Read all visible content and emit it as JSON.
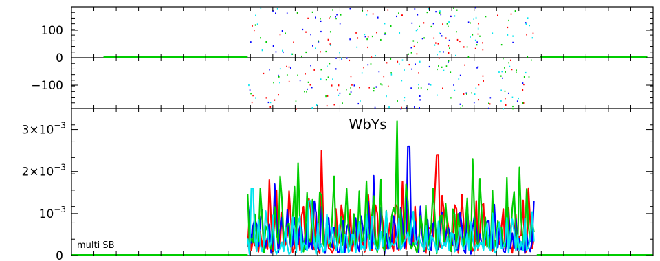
{
  "chart_data": [
    {
      "type": "scatter",
      "panel": "phase-upper",
      "ylim": [
        0,
        185
      ],
      "yticks": [
        {
          "v": 0,
          "label": "0"
        },
        {
          "v": 100,
          "label": "100"
        }
      ],
      "xlim": [
        0,
        1
      ],
      "active_range": [
        0.303,
        0.795
      ],
      "zero_line_color": "#00cc00",
      "series": [
        {
          "color": "#ff0000",
          "count": 48
        },
        {
          "color": "#0000ff",
          "count": 44
        },
        {
          "color": "#00cc00",
          "count": 50
        },
        {
          "color": "#00e5ee",
          "count": 40
        }
      ]
    },
    {
      "type": "scatter",
      "panel": "phase-lower",
      "ylim": [
        -185,
        0
      ],
      "yticks": [
        {
          "v": -100,
          "label": "−100"
        }
      ],
      "xlim": [
        0,
        1
      ],
      "active_range": [
        0.303,
        0.795
      ],
      "series": [
        {
          "color": "#ff0000",
          "count": 48
        },
        {
          "color": "#0000ff",
          "count": 44
        },
        {
          "color": "#00cc00",
          "count": 55
        },
        {
          "color": "#00e5ee",
          "count": 40
        }
      ]
    },
    {
      "type": "line",
      "panel": "amplitude",
      "title": "WbYs",
      "annotation": "multi SB",
      "ylim": [
        0,
        0.0035
      ],
      "yticks": [
        {
          "v": 0,
          "label": "0",
          "sup": ""
        },
        {
          "v": 0.001,
          "label": "10",
          "sup": "−3"
        },
        {
          "v": 0.002,
          "label": "2×10",
          "sup": "−3"
        },
        {
          "v": 0.003,
          "label": "3×10",
          "sup": "−3"
        }
      ],
      "xlim": [
        0,
        1
      ],
      "active_range": [
        0.303,
        0.795
      ],
      "points_per_series": 160,
      "series": [
        {
          "color": "#ff0000",
          "values_hint": "noise 0.0002–0.0025",
          "peaks": [
            [
              0.43,
              0.0025
            ],
            [
              0.63,
              0.0024
            ],
            [
              0.34,
              0.0018
            ]
          ]
        },
        {
          "color": "#0000ff",
          "values_hint": "noise 0.0001–0.0026",
          "peaks": [
            [
              0.58,
              0.0026
            ],
            [
              0.35,
              0.0017
            ],
            [
              0.52,
              0.0019
            ]
          ]
        },
        {
          "color": "#00cc00",
          "values_hint": "noise 0.0001–0.0032",
          "peaks": [
            [
              0.56,
              0.0032
            ],
            [
              0.39,
              0.0022
            ],
            [
              0.69,
              0.0023
            ],
            [
              0.77,
              0.0021
            ]
          ]
        },
        {
          "color": "#00e5ee",
          "values_hint": "noise 0.0001–0.0017",
          "peaks": [
            [
              0.31,
              0.0016
            ],
            [
              0.41,
              0.0013
            ]
          ]
        }
      ]
    }
  ]
}
